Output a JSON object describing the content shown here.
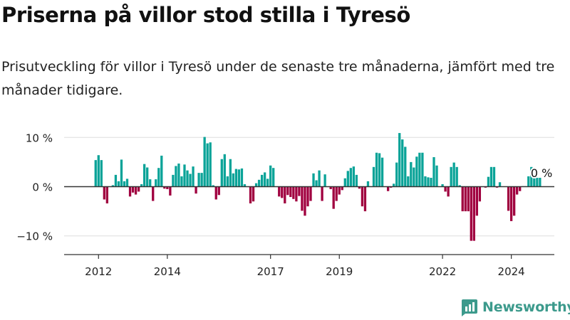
{
  "title": "Priserna på villor stod stilla i Tyresö",
  "subtitle": "Prisutveckling för villor i Tyresö under de senaste tre månaderna, jämfört med tre månader tidigare.",
  "brand": {
    "name": "Newsworthy"
  },
  "colors": {
    "positive": "#0aa398",
    "negative": "#a0003f",
    "grid": "#dddddd",
    "axis": "#333333",
    "brand": "#3c9a8c"
  },
  "chart_data": {
    "type": "bar",
    "x_start": 2011.9167,
    "x_step": 0.08333,
    "xlim": [
      2011.0,
      2025.25
    ],
    "ylim": [
      -12.5,
      12.5
    ],
    "yticks": [
      {
        "value": 10,
        "label": "10 %"
      },
      {
        "value": 0,
        "label": "0 %"
      },
      {
        "value": -10,
        "label": "−10 %"
      }
    ],
    "xticks": [
      {
        "value": 2012,
        "label": "2012"
      },
      {
        "value": 2014,
        "label": "2014"
      },
      {
        "value": 2017,
        "label": "2017"
      },
      {
        "value": 2019,
        "label": "2019"
      },
      {
        "value": 2022,
        "label": "2022"
      },
      {
        "value": 2024,
        "label": "2024"
      }
    ],
    "values": [
      5.4,
      6.4,
      5.4,
      -2.6,
      -3.4,
      0,
      0.3,
      2.4,
      1.1,
      5.5,
      1.1,
      1.6,
      -2.0,
      -1.2,
      -1.6,
      -1.0,
      0.5,
      4.6,
      3.9,
      1.5,
      -2.9,
      1.5,
      3.8,
      6.3,
      -0.4,
      -0.5,
      -1.8,
      2.4,
      4.2,
      4.7,
      2.1,
      4.5,
      3.3,
      2.6,
      4.1,
      -1.4,
      2.8,
      2.8,
      10.1,
      8.8,
      9.0,
      0.3,
      -2.6,
      -1.7,
      5.6,
      6.6,
      2.1,
      5.6,
      2.7,
      3.6,
      3.5,
      3.7,
      0.5,
      0,
      -3.4,
      -3.0,
      0.7,
      1.4,
      2.4,
      2.9,
      1.6,
      4.3,
      3.8,
      0,
      -2.0,
      -2.3,
      -3.4,
      -1.7,
      -2.1,
      -2.5,
      -3.0,
      -1.9,
      -4.9,
      -5.9,
      -4.0,
      -2.9,
      2.7,
      1.3,
      3.3,
      -2.9,
      2.5,
      0,
      -0.5,
      -4.5,
      -2.9,
      -1.6,
      -0.7,
      1.7,
      3.2,
      3.8,
      4.1,
      2.4,
      -0.4,
      -4.0,
      -5.0,
      1.1,
      0.1,
      4.0,
      6.9,
      6.8,
      5.9,
      0,
      -0.9,
      -0.2,
      0.6,
      4.9,
      10.9,
      9.6,
      8.1,
      2.1,
      5.0,
      3.9,
      6.1,
      6.9,
      6.9,
      2.1,
      1.9,
      1.8,
      6.0,
      4.3,
      0,
      0.5,
      -1.0,
      -2.0,
      4.0,
      4.9,
      4.0,
      0.3,
      -5.0,
      -5.0,
      -5.0,
      -11.0,
      -11.0,
      -5.9,
      -3.0,
      0,
      -0.2,
      2.0,
      4.0,
      4.0,
      -0.2,
      0.9,
      0,
      0,
      -4.9,
      -7.0,
      -5.9,
      -1.6,
      -0.9,
      0.1,
      0.1,
      2.1,
      4.0,
      2.1,
      1.8,
      1.8
    ],
    "annotation": {
      "label": "0 %"
    }
  }
}
